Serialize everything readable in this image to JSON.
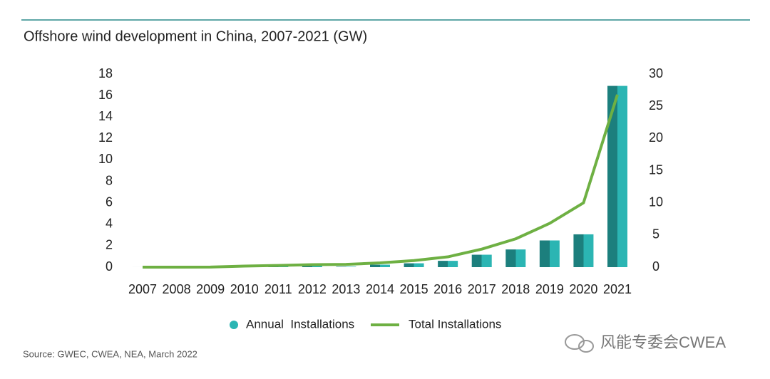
{
  "chart_data": {
    "type": "bar_line",
    "title": "Offshore wind development in China, 2007-2021 (GW)",
    "categories": [
      "2007",
      "2008",
      "2009",
      "2010",
      "2011",
      "2012",
      "2013",
      "2014",
      "2015",
      "2016",
      "2017",
      "2018",
      "2019",
      "2020",
      "2021"
    ],
    "series": [
      {
        "name": "Annual  Installations",
        "type": "bar",
        "color": "#2bb5b3",
        "axis": "y",
        "values": [
          0.0015,
          0,
          0.016,
          0.15,
          0.11,
          0.13,
          0.04,
          0.23,
          0.36,
          0.59,
          1.16,
          1.65,
          2.49,
          3.06,
          16.9
        ]
      },
      {
        "name": "Total Installations",
        "type": "line",
        "color": "#6eb043",
        "axis": "y2",
        "values": [
          0,
          0,
          0.02,
          0.17,
          0.26,
          0.39,
          0.43,
          0.66,
          1.02,
          1.6,
          2.8,
          4.4,
          6.8,
          10,
          26.8
        ]
      }
    ],
    "ylim": [
      0,
      18
    ],
    "yticks": [
      0,
      2,
      4,
      6,
      8,
      10,
      12,
      14,
      16,
      18
    ],
    "y2lim": [
      0,
      30
    ],
    "y2ticks": [
      0,
      5,
      10,
      15,
      20,
      25,
      30
    ],
    "source": "Source: GWEC, CWEA, NEA, March 2022",
    "watermark": "风能专委会CWEA"
  }
}
